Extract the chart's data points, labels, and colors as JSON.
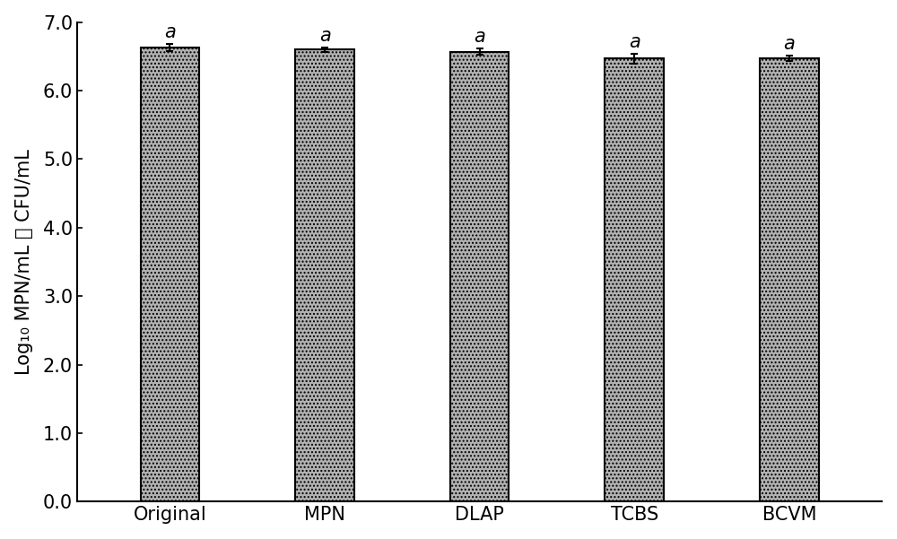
{
  "categories": [
    "Original",
    "MPN",
    "DLAP",
    "TCBS",
    "BCVM"
  ],
  "values": [
    6.63,
    6.6,
    6.57,
    6.47,
    6.47
  ],
  "errors": [
    0.05,
    0.03,
    0.04,
    0.07,
    0.04
  ],
  "labels": [
    "a",
    "a",
    "a",
    "a",
    "a"
  ],
  "bar_color": "#b2b2b2",
  "bar_edgecolor": "#000000",
  "bar_width": 0.38,
  "ylabel": "Log₁₀ MPN/mL 或 CFU/mL",
  "ylim": [
    0.0,
    7.0
  ],
  "yticks": [
    0.0,
    1.0,
    2.0,
    3.0,
    4.0,
    5.0,
    6.0,
    7.0
  ],
  "ytick_labels": [
    "0.0",
    "1.0",
    "2.0",
    "3.0",
    "4.0",
    "5.0",
    "6.0",
    "7.0"
  ],
  "background_color": "#ffffff",
  "label_fontsize": 15,
  "tick_fontsize": 15,
  "annot_fontsize": 15,
  "capsize": 3,
  "linewidth": 1.5
}
